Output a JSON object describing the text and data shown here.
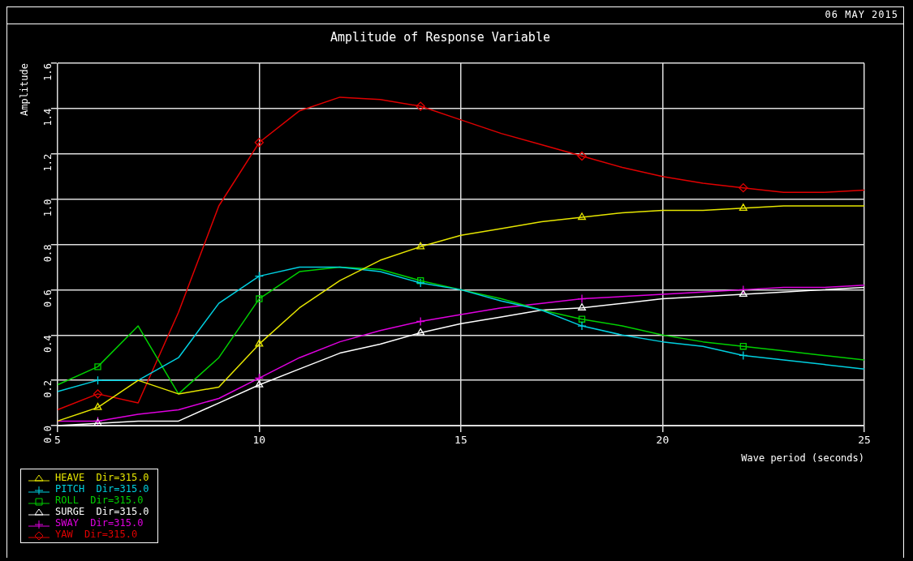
{
  "chart_data": {
    "type": "line",
    "title": "Amplitude of Response Variable",
    "xlabel": "Wave period (seconds)",
    "ylabel": "Amplitude",
    "annotations": [
      "06 MAY 2015"
    ],
    "x": [
      5,
      6,
      7,
      8,
      9,
      10,
      11,
      12,
      13,
      14,
      15,
      16,
      17,
      18,
      19,
      20,
      21,
      22,
      23,
      24,
      25
    ],
    "series": [
      {
        "name": "HEAVE  Dir=315.0",
        "color": "#e6e600",
        "values": [
          0.02,
          0.08,
          0.2,
          0.14,
          0.17,
          0.36,
          0.52,
          0.64,
          0.73,
          0.79,
          0.84,
          0.87,
          0.9,
          0.92,
          0.94,
          0.95,
          0.95,
          0.96,
          0.97,
          0.97,
          0.97
        ]
      },
      {
        "name": "PITCH  Dir=315.0",
        "color": "#00d0e0",
        "values": [
          0.15,
          0.2,
          0.2,
          0.3,
          0.54,
          0.66,
          0.7,
          0.7,
          0.68,
          0.63,
          0.6,
          0.55,
          0.51,
          0.44,
          0.4,
          0.37,
          0.35,
          0.31,
          0.29,
          0.27,
          0.25
        ]
      },
      {
        "name": "ROLL  Dir=315.0",
        "color": "#00d000",
        "values": [
          0.18,
          0.26,
          0.44,
          0.14,
          0.3,
          0.56,
          0.68,
          0.7,
          0.69,
          0.64,
          0.6,
          0.56,
          0.51,
          0.47,
          0.44,
          0.4,
          0.37,
          0.35,
          0.33,
          0.31,
          0.29
        ]
      },
      {
        "name": "SURGE  Dir=315.0",
        "color": "#ffffff",
        "values": [
          0.0,
          0.01,
          0.02,
          0.02,
          0.1,
          0.18,
          0.25,
          0.32,
          0.36,
          0.41,
          0.45,
          0.48,
          0.51,
          0.52,
          0.54,
          0.56,
          0.57,
          0.58,
          0.59,
          0.6,
          0.61
        ]
      },
      {
        "name": "SWAY  Dir=315.0",
        "color": "#e000e0",
        "values": [
          0.02,
          0.02,
          0.05,
          0.07,
          0.12,
          0.21,
          0.3,
          0.37,
          0.42,
          0.46,
          0.49,
          0.52,
          0.54,
          0.56,
          0.57,
          0.58,
          0.59,
          0.6,
          0.61,
          0.61,
          0.62
        ]
      },
      {
        "name": "YAW  Dir=315.0",
        "color": "#e00000",
        "values": [
          0.07,
          0.14,
          0.1,
          0.5,
          0.97,
          1.25,
          1.39,
          1.45,
          1.44,
          1.41,
          1.35,
          1.29,
          1.24,
          1.19,
          1.14,
          1.1,
          1.07,
          1.05,
          1.03,
          1.03,
          1.04
        ]
      },
      {
        "type": "scatter",
        "color": "#e6e600",
        "marker": "triangle",
        "x": [
          6,
          10,
          14,
          18,
          22
        ],
        "values": [
          0.08,
          0.36,
          0.79,
          0.92,
          0.96
        ]
      },
      {
        "type": "scatter",
        "color": "#00d0e0",
        "marker": "cross",
        "x": [
          6,
          10,
          14,
          18,
          22
        ],
        "values": [
          0.2,
          0.66,
          0.63,
          0.44,
          0.31
        ]
      },
      {
        "type": "scatter",
        "color": "#00d000",
        "marker": "square",
        "x": [
          6,
          10,
          14,
          18,
          22
        ],
        "values": [
          0.26,
          0.56,
          0.64,
          0.47,
          0.35
        ]
      },
      {
        "type": "scatter",
        "color": "#ffffff",
        "marker": "triangle",
        "x": [
          6,
          10,
          14,
          18,
          22
        ],
        "values": [
          0.01,
          0.18,
          0.41,
          0.52,
          0.58
        ]
      },
      {
        "type": "scatter",
        "color": "#e000e0",
        "marker": "cross",
        "x": [
          6,
          10,
          14,
          18,
          22
        ],
        "values": [
          0.02,
          0.21,
          0.46,
          0.56,
          0.6
        ]
      },
      {
        "type": "scatter",
        "color": "#e00000",
        "marker": "diamond",
        "x": [
          6,
          10,
          14,
          18,
          22
        ],
        "values": [
          0.14,
          1.25,
          1.41,
          1.19,
          1.05
        ]
      }
    ],
    "xlim": [
      5,
      25
    ],
    "xticks": [
      5,
      10,
      15,
      20,
      25
    ],
    "ylim": [
      0,
      1.6
    ],
    "yticks": [
      {
        "value": 0,
        "label": "0.0"
      },
      {
        "value": 0.2,
        "label": "0.2"
      },
      {
        "value": 0.4,
        "label": "0.4"
      },
      {
        "value": 0.6,
        "label": "0.6"
      },
      {
        "value": 0.8,
        "label": "0.8"
      },
      {
        "value": 1,
        "label": "1.0"
      },
      {
        "value": 1.2,
        "label": "1.2"
      },
      {
        "value": 1.4,
        "label": "1.4"
      },
      {
        "value": 1.6,
        "label": "1.6"
      }
    ],
    "grid": true,
    "legend": "bottom left",
    "line_style": "solid"
  }
}
